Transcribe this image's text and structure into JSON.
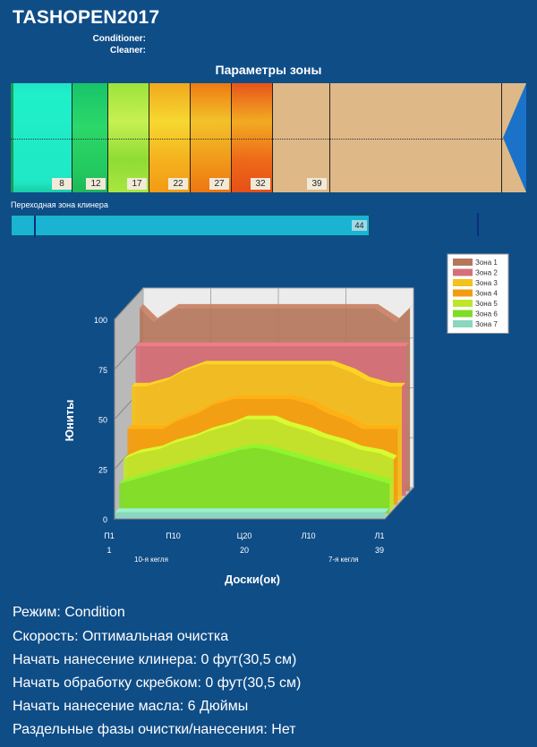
{
  "header": {
    "title": "TASHOPEN2017",
    "conditioner_label": "Conditioner:",
    "cleaner_label": "Cleaner:"
  },
  "zone_panel": {
    "title": "Параметры зоны",
    "boundaries": [
      "8",
      "12",
      "17",
      "22",
      "27",
      "32",
      "39"
    ],
    "transition_label": "Переходная зона клинера",
    "transition_value": "44"
  },
  "chart_data": {
    "type": "area",
    "title": "",
    "ylabel": "Юниты",
    "xlabel": "Доски(ок)",
    "ylim": [
      0,
      100
    ],
    "yticks": [
      "0",
      "25",
      "50",
      "75",
      "100"
    ],
    "x_tick_labels_top": [
      "П1",
      "П10",
      "Ц20",
      "Л10",
      "Л1"
    ],
    "x_tick_labels_bottom": [
      "1",
      "20",
      "39"
    ],
    "x_annotations": [
      "10-я кегля",
      "7-я кегля"
    ],
    "legend_position": "top-right",
    "x": [
      1,
      3,
      6,
      8,
      11,
      13,
      16,
      18,
      20,
      22,
      24,
      27,
      29,
      32,
      34,
      37,
      39
    ],
    "series": [
      {
        "name": "Зона 1",
        "color": "#b5765c",
        "values": [
          92,
          85,
          92,
          92,
          92,
          92,
          92,
          92,
          92,
          92,
          92,
          92,
          92,
          92,
          92,
          85,
          92
        ]
      },
      {
        "name": "Зона 2",
        "color": "#d4707a",
        "values": [
          75,
          75,
          75,
          75,
          75,
          75,
          75,
          75,
          75,
          75,
          75,
          75,
          75,
          75,
          75,
          75,
          75
        ]
      },
      {
        "name": "Зона 3",
        "color": "#f3c21c",
        "values": [
          57,
          57,
          60,
          64,
          68,
          68,
          68,
          68,
          68,
          68,
          68,
          68,
          68,
          64,
          60,
          57,
          57
        ]
      },
      {
        "name": "Зона 4",
        "color": "#f39c12",
        "values": [
          38,
          38,
          38,
          42,
          46,
          50,
          53,
          53,
          53,
          53,
          53,
          50,
          46,
          42,
          38,
          38,
          38
        ]
      },
      {
        "name": "Зона 5",
        "color": "#bfe62c",
        "values": [
          25,
          28,
          30,
          33,
          36,
          39,
          42,
          45,
          45,
          45,
          42,
          39,
          36,
          33,
          30,
          28,
          25
        ]
      },
      {
        "name": "Зона 6",
        "color": "#7fdc29",
        "values": [
          15,
          17,
          20,
          22,
          25,
          27,
          30,
          32,
          33,
          32,
          30,
          27,
          25,
          22,
          20,
          17,
          15
        ]
      },
      {
        "name": "Зона 7",
        "color": "#8ad7c1",
        "values": [
          3,
          3,
          3,
          3,
          3,
          3,
          3,
          3,
          3,
          3,
          3,
          3,
          3,
          3,
          3,
          3,
          3
        ]
      }
    ]
  },
  "info": {
    "mode": "Режим: Condition",
    "speed": "Скорость: Оптимальная очистка",
    "cleaner_start": "Начать нанесение клинера: 0 фут(30,5 см)",
    "scraper_start": "Начать обработку скребком: 0 фут(30,5 см)",
    "oil_start": "Начать нанесение масла: 6 Дюймы",
    "separate_phases": "Раздельные фазы очистки/нанесения: Нет"
  }
}
